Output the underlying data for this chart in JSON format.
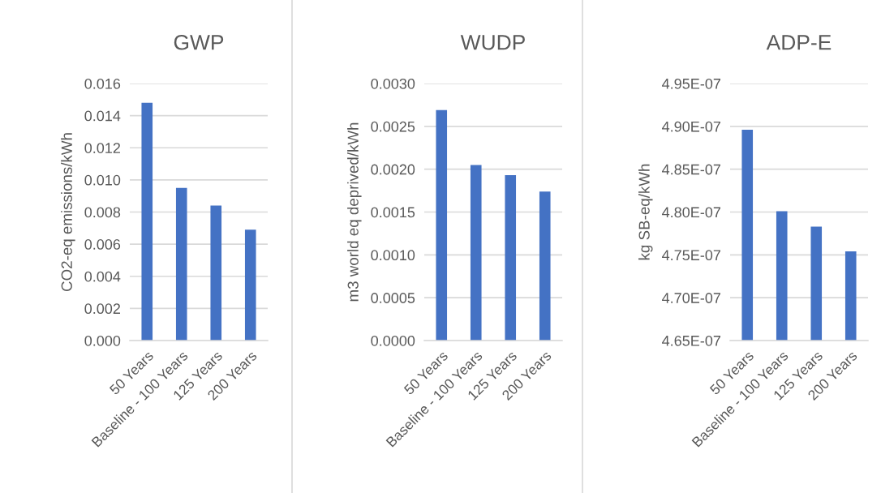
{
  "chart_data": [
    {
      "type": "bar",
      "title": "GWP",
      "ylabel": "CO2-eq emissions/kWh",
      "categories": [
        "50 Years",
        "Baseline - 100 Years",
        "125 Years",
        "200 Years"
      ],
      "values": [
        0.0148,
        0.0095,
        0.0084,
        0.0069
      ],
      "color": "#4472c4",
      "ylim": [
        0,
        0.016
      ],
      "yticks": [
        {
          "value": 0,
          "label": "0.000"
        },
        {
          "value": 0.002,
          "label": "0.002"
        },
        {
          "value": 0.004,
          "label": "0.004"
        },
        {
          "value": 0.006,
          "label": "0.006"
        },
        {
          "value": 0.008,
          "label": "0.008"
        },
        {
          "value": 0.01,
          "label": "0.010"
        },
        {
          "value": 0.012,
          "label": "0.012"
        },
        {
          "value": 0.014,
          "label": "0.014"
        },
        {
          "value": 0.016,
          "label": "0.016"
        }
      ],
      "grid": "y",
      "legend": false
    },
    {
      "type": "bar",
      "title": "WUDP",
      "ylabel": "m3 world eq deprived/kWh",
      "categories": [
        "50 Years",
        "Baseline - 100 Years",
        "125 Years",
        "200 Years"
      ],
      "values": [
        0.00269,
        0.00205,
        0.00193,
        0.00174
      ],
      "color": "#4472c4",
      "ylim": [
        0,
        0.003
      ],
      "yticks": [
        {
          "value": 0,
          "label": "0.0000"
        },
        {
          "value": 0.0005,
          "label": "0.0005"
        },
        {
          "value": 0.001,
          "label": "0.0010"
        },
        {
          "value": 0.0015,
          "label": "0.0015"
        },
        {
          "value": 0.002,
          "label": "0.0020"
        },
        {
          "value": 0.0025,
          "label": "0.0025"
        },
        {
          "value": 0.003,
          "label": "0.0030"
        }
      ],
      "grid": "y",
      "legend": false
    },
    {
      "type": "bar",
      "title": "ADP-E",
      "ylabel": "kg SB-eq/kWh",
      "categories": [
        "50 Years",
        "Baseline - 100 Years",
        "125 Years",
        "200 Years"
      ],
      "values": [
        4.896e-07,
        4.801e-07,
        4.783e-07,
        4.754e-07
      ],
      "color": "#4472c4",
      "ylim": [
        4.65e-07,
        4.95e-07
      ],
      "yticks": [
        {
          "value": 4.65e-07,
          "label": "4.65E-07"
        },
        {
          "value": 4.7e-07,
          "label": "4.70E-07"
        },
        {
          "value": 4.75e-07,
          "label": "4.75E-07"
        },
        {
          "value": 4.8e-07,
          "label": "4.80E-07"
        },
        {
          "value": 4.85e-07,
          "label": "4.85E-07"
        },
        {
          "value": 4.9e-07,
          "label": "4.90E-07"
        },
        {
          "value": 4.95e-07,
          "label": "4.95E-07"
        }
      ],
      "grid": "y",
      "legend": false
    }
  ]
}
